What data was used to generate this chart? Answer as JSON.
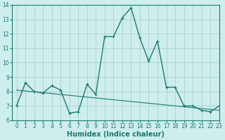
{
  "xlabel": "Humidex (Indice chaleur)",
  "x": [
    0,
    1,
    2,
    3,
    4,
    5,
    6,
    7,
    8,
    9,
    10,
    11,
    12,
    13,
    14,
    15,
    16,
    17,
    18,
    19,
    20,
    21,
    22,
    23
  ],
  "y_main": [
    7.0,
    8.6,
    8.0,
    7.9,
    8.4,
    8.1,
    6.5,
    6.6,
    8.5,
    7.8,
    11.8,
    11.8,
    13.1,
    13.8,
    11.7,
    10.1,
    11.5,
    8.3,
    8.3,
    7.0,
    7.0,
    6.7,
    6.6,
    7.0
  ],
  "y_trend_x": [
    0,
    23
  ],
  "y_trend_y": [
    8.1,
    6.7
  ],
  "line_color": "#1a7a6e",
  "bg_color": "#ceeeed",
  "grid_color": "#aed4d2",
  "ylim": [
    6,
    14
  ],
  "xlim": [
    -0.5,
    23
  ],
  "yticks": [
    6,
    7,
    8,
    9,
    10,
    11,
    12,
    13,
    14
  ],
  "xticks": [
    0,
    1,
    2,
    3,
    4,
    5,
    6,
    7,
    8,
    9,
    10,
    11,
    12,
    13,
    14,
    15,
    16,
    17,
    18,
    19,
    20,
    21,
    22,
    23
  ],
  "tick_fontsize": 5.5,
  "xlabel_fontsize": 7
}
